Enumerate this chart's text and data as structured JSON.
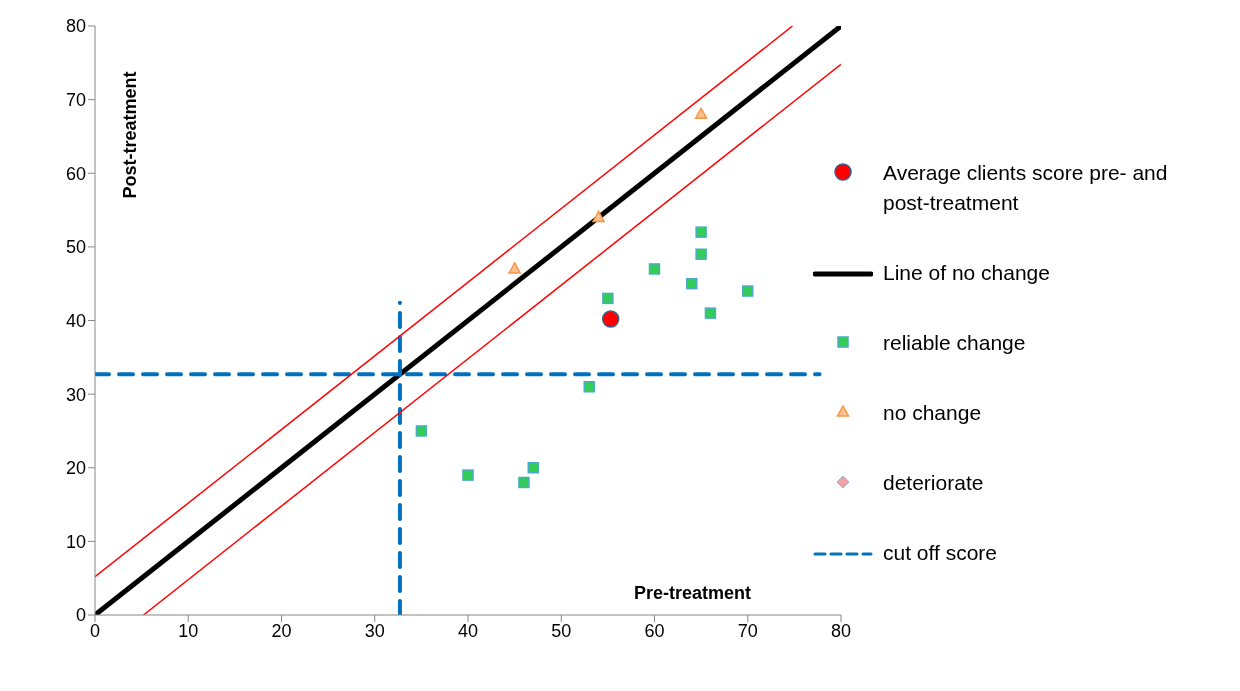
{
  "chart_data": {
    "type": "scatter",
    "xlabel": "Pre-treatment",
    "ylabel": "Post-treatment",
    "xlim": [
      0,
      80
    ],
    "ylim": [
      0,
      80
    ],
    "xticks": [
      0,
      10,
      20,
      30,
      40,
      50,
      60,
      70,
      80
    ],
    "yticks": [
      0,
      10,
      20,
      30,
      40,
      50,
      60,
      70,
      80
    ],
    "legend": "right",
    "series": [
      {
        "name": "Average clients score pre- and post-treatment",
        "marker": "circle",
        "color": "#ff0000",
        "x": [
          55.3
        ],
        "values": [
          40.2
        ]
      },
      {
        "name": "Line of no change",
        "type": "line",
        "marker": "none",
        "line_style": "solid",
        "color": "#000000",
        "x": [
          0,
          80
        ],
        "values": [
          0,
          80
        ]
      },
      {
        "name": "reliable change",
        "marker": "square",
        "color": "#33cc55",
        "x": [
          35,
          40,
          46,
          47,
          53,
          55,
          60,
          64,
          65,
          65,
          66,
          70
        ],
        "values": [
          25,
          19,
          18,
          20,
          31,
          43,
          47,
          45,
          52,
          49,
          41,
          44
        ]
      },
      {
        "name": "no change",
        "marker": "triangle",
        "color": "#f79646",
        "x": [
          45,
          54,
          65
        ],
        "values": [
          47,
          54,
          68
        ]
      },
      {
        "name": "deteriorate",
        "marker": "diamond",
        "color": "#f4a0a8"
      },
      {
        "name": "cut off score",
        "type": "line",
        "marker": "none",
        "line_style": "dashed",
        "color": "#0070c0",
        "x": [
          32.7,
          32.7,
          null,
          0,
          77.7
        ],
        "values": [
          0,
          42.4,
          null,
          32.7,
          32.7
        ]
      },
      {
        "type": "line",
        "marker": "none",
        "line_style": "solid",
        "color": "#ff0000",
        "x": [
          0,
          74.8
        ],
        "values": [
          5.2,
          80
        ]
      },
      {
        "type": "line",
        "marker": "none",
        "line_style": "solid",
        "color": "#ff0000",
        "x": [
          5.2,
          80
        ],
        "values": [
          0,
          74.8
        ]
      }
    ]
  }
}
